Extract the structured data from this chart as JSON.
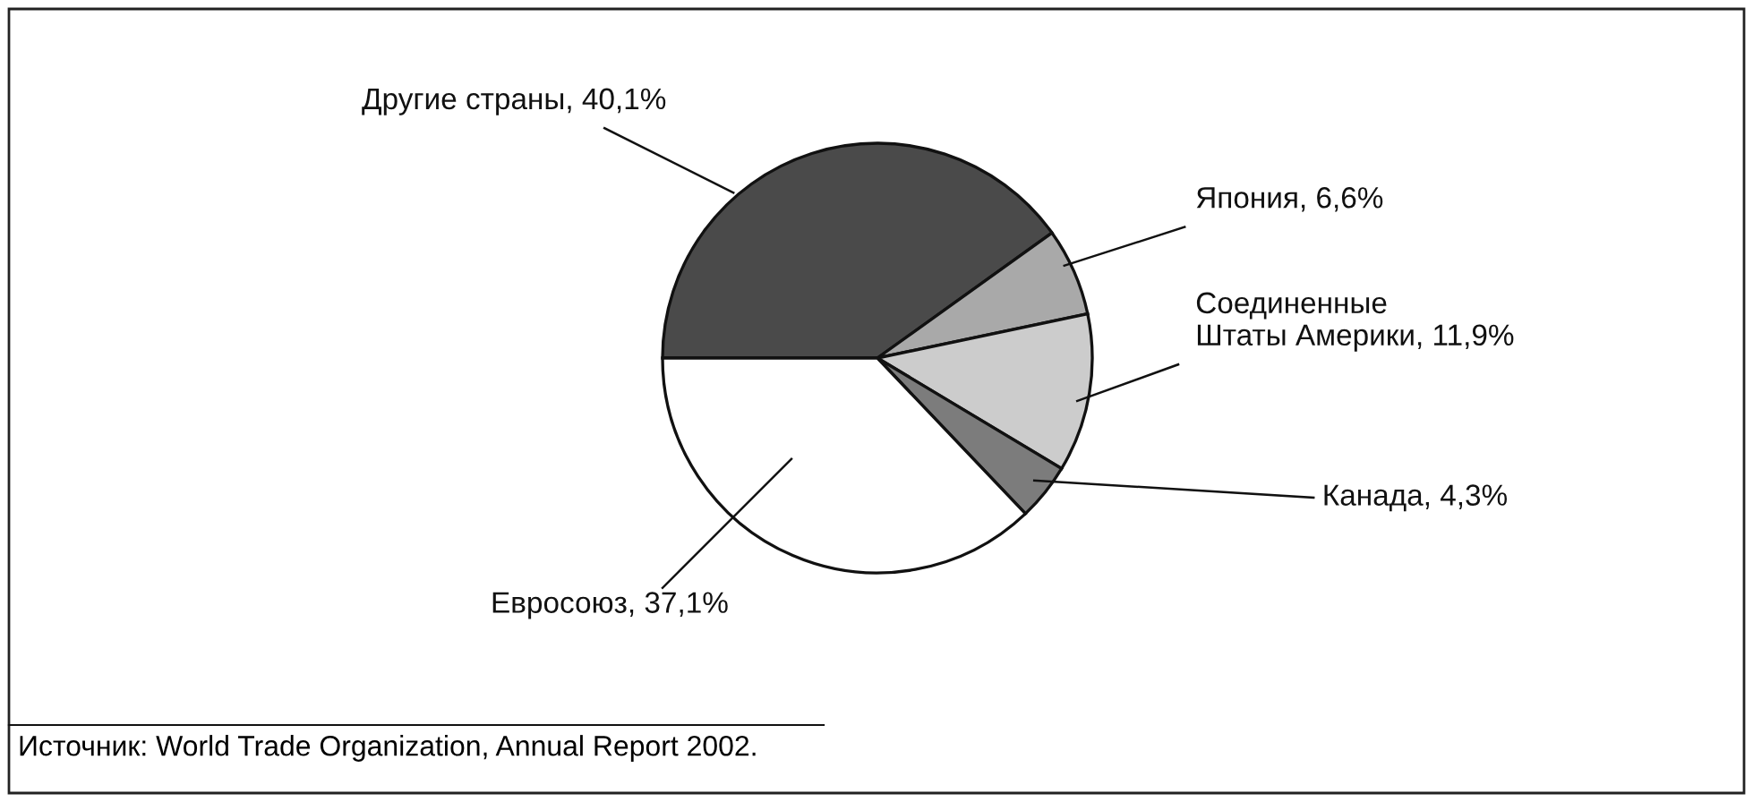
{
  "chart_data": {
    "type": "pie",
    "categories": [
      "Другие страны",
      "Япония",
      "Соединенные\nШтаты Америки",
      "Канада",
      "Евросоюз"
    ],
    "values": [
      40.1,
      6.6,
      11.9,
      4.3,
      37.1
    ],
    "value_labels": [
      "40,1%",
      "6,6%",
      "11,9%",
      "4,3%",
      "37,1%"
    ],
    "colors": [
      "#4a4a4a",
      "#a9a9a9",
      "#cccccc",
      "#7c7c7c",
      "#ffffff"
    ],
    "annotations": [
      "Источник: World Trade Organization, Annual Report 2002."
    ]
  }
}
